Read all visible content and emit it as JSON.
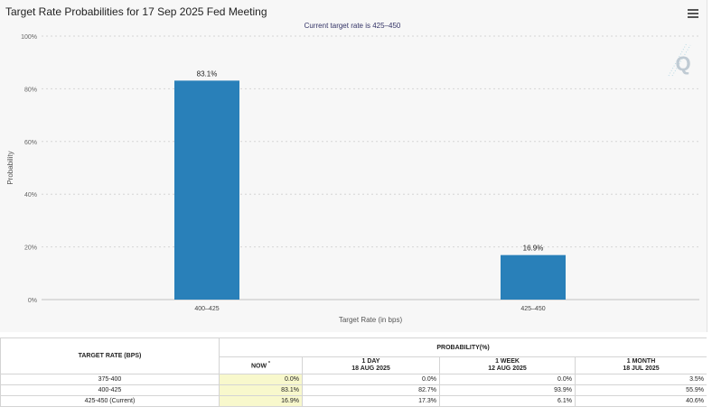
{
  "chart_data": {
    "type": "bar",
    "title": "Target Rate Probabilities for 17 Sep 2025 Fed Meeting",
    "subtitle": "Current target rate is 425–450",
    "categories": [
      "400–425",
      "425–450"
    ],
    "values": [
      83.1,
      16.9
    ],
    "data_labels": [
      "83.1%",
      "16.9%"
    ],
    "xlabel": "Target Rate (in bps)",
    "ylabel": "Probability",
    "ylim": [
      0,
      100
    ],
    "yticks": [
      0,
      20,
      40,
      60,
      80,
      100
    ],
    "ytick_labels": [
      "0%",
      "20%",
      "40%",
      "60%",
      "80%",
      "100%"
    ],
    "grid": true,
    "bar_color": "#2980b9"
  },
  "watermark": {
    "text": "Q"
  },
  "menu": {
    "icon": "hamburger-menu-icon"
  },
  "table": {
    "rate_header": "TARGET RATE (BPS)",
    "probability_header": "PROBABILITY(%)",
    "columns": [
      {
        "label": "NOW",
        "marker": "*",
        "date": ""
      },
      {
        "label": "1 DAY",
        "date": "18 AUG 2025"
      },
      {
        "label": "1 WEEK",
        "date": "12 AUG 2025"
      },
      {
        "label": "1 MONTH",
        "date": "18 JUL 2025"
      }
    ],
    "rows": [
      {
        "rate": "375-400",
        "now": "0.0%",
        "day": "0.0%",
        "week": "0.0%",
        "month": "3.5%"
      },
      {
        "rate": "400-425",
        "now": "83.1%",
        "day": "82.7%",
        "week": "93.9%",
        "month": "55.9%"
      },
      {
        "rate": "425-450 (Current)",
        "now": "16.9%",
        "day": "17.3%",
        "week": "6.1%",
        "month": "40.6%"
      }
    ],
    "now_highlight": "#f8f8cc"
  }
}
